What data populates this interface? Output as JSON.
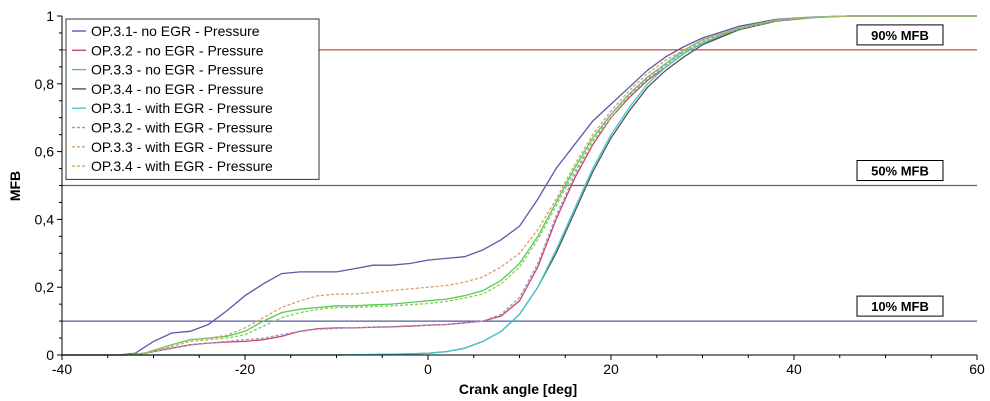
{
  "chart_data": {
    "type": "line",
    "title": "",
    "xlabel": "Crank angle [deg]",
    "ylabel": "MFB",
    "xlim": [
      -40,
      60
    ],
    "ylim": [
      0,
      1
    ],
    "xticks": [
      -40,
      -20,
      0,
      20,
      40,
      60
    ],
    "xtick_labels": [
      "-40",
      "-20",
      "0",
      "20",
      "40",
      "60"
    ],
    "yticks": [
      0,
      0.2,
      0.4,
      0.6,
      0.8,
      1
    ],
    "ytick_labels": [
      "0",
      "0,2",
      "0,4",
      "0,6",
      "0,8",
      "1"
    ],
    "grid": false,
    "legend_position": "top-left",
    "reference_lines": [
      {
        "label": "90% MFB",
        "y": 0.9,
        "color": "#c0504d"
      },
      {
        "label": "50% MFB",
        "y": 0.5,
        "color": "#8a4a8a"
      },
      {
        "label": "10% MFB",
        "y": 0.1,
        "color": "#5a5aa0"
      }
    ],
    "series": [
      {
        "name": "OP.3.1- no EGR - Pressure",
        "color": "#5a5aa8",
        "dash": "solid",
        "points": [
          [
            -40,
            0
          ],
          [
            -34,
            0
          ],
          [
            -32,
            0.005
          ],
          [
            -30,
            0.04
          ],
          [
            -28,
            0.065
          ],
          [
            -26,
            0.07
          ],
          [
            -24,
            0.09
          ],
          [
            -22,
            0.13
          ],
          [
            -20,
            0.175
          ],
          [
            -18,
            0.21
          ],
          [
            -16,
            0.24
          ],
          [
            -14,
            0.245
          ],
          [
            -12,
            0.245
          ],
          [
            -10,
            0.245
          ],
          [
            -8,
            0.255
          ],
          [
            -6,
            0.265
          ],
          [
            -4,
            0.265
          ],
          [
            -2,
            0.27
          ],
          [
            0,
            0.28
          ],
          [
            2,
            0.285
          ],
          [
            4,
            0.29
          ],
          [
            6,
            0.31
          ],
          [
            8,
            0.34
          ],
          [
            10,
            0.38
          ],
          [
            12,
            0.46
          ],
          [
            14,
            0.55
          ],
          [
            16,
            0.62
          ],
          [
            18,
            0.69
          ],
          [
            20,
            0.74
          ],
          [
            22,
            0.79
          ],
          [
            24,
            0.84
          ],
          [
            26,
            0.88
          ],
          [
            28,
            0.91
          ],
          [
            30,
            0.935
          ],
          [
            34,
            0.97
          ],
          [
            38,
            0.99
          ],
          [
            42,
            0.997
          ],
          [
            46,
            1
          ],
          [
            60,
            1
          ]
        ]
      },
      {
        "name": "OP.3.2 - no EGR - Pressure",
        "color": "#cc4466",
        "dash": "solid",
        "points": [
          [
            -40,
            0
          ],
          [
            -33,
            0
          ],
          [
            -31,
            0.005
          ],
          [
            -28,
            0.02
          ],
          [
            -26,
            0.03
          ],
          [
            -24,
            0.035
          ],
          [
            -22,
            0.038
          ],
          [
            -20,
            0.04
          ],
          [
            -18,
            0.045
          ],
          [
            -16,
            0.055
          ],
          [
            -14,
            0.07
          ],
          [
            -12,
            0.078
          ],
          [
            -10,
            0.08
          ],
          [
            -8,
            0.08
          ],
          [
            -6,
            0.082
          ],
          [
            -4,
            0.083
          ],
          [
            -2,
            0.085
          ],
          [
            0,
            0.088
          ],
          [
            2,
            0.09
          ],
          [
            4,
            0.095
          ],
          [
            6,
            0.1
          ],
          [
            8,
            0.115
          ],
          [
            10,
            0.16
          ],
          [
            12,
            0.26
          ],
          [
            14,
            0.4
          ],
          [
            16,
            0.52
          ],
          [
            18,
            0.62
          ],
          [
            20,
            0.7
          ],
          [
            22,
            0.76
          ],
          [
            24,
            0.81
          ],
          [
            26,
            0.85
          ],
          [
            28,
            0.89
          ],
          [
            30,
            0.92
          ],
          [
            34,
            0.96
          ],
          [
            38,
            0.985
          ],
          [
            42,
            0.995
          ],
          [
            46,
            1
          ],
          [
            60,
            1
          ]
        ]
      },
      {
        "name": "OP.3.3 - no EGR - Pressure",
        "color": "#55cc55",
        "dash": "solid",
        "points": [
          [
            -40,
            0
          ],
          [
            -33,
            0
          ],
          [
            -31,
            0.005
          ],
          [
            -28,
            0.03
          ],
          [
            -26,
            0.045
          ],
          [
            -24,
            0.05
          ],
          [
            -22,
            0.055
          ],
          [
            -20,
            0.07
          ],
          [
            -18,
            0.1
          ],
          [
            -16,
            0.125
          ],
          [
            -14,
            0.135
          ],
          [
            -12,
            0.14
          ],
          [
            -10,
            0.145
          ],
          [
            -8,
            0.145
          ],
          [
            -6,
            0.148
          ],
          [
            -4,
            0.15
          ],
          [
            -2,
            0.155
          ],
          [
            0,
            0.16
          ],
          [
            2,
            0.165
          ],
          [
            4,
            0.175
          ],
          [
            6,
            0.19
          ],
          [
            8,
            0.22
          ],
          [
            10,
            0.27
          ],
          [
            12,
            0.35
          ],
          [
            14,
            0.45
          ],
          [
            16,
            0.55
          ],
          [
            18,
            0.64
          ],
          [
            20,
            0.71
          ],
          [
            22,
            0.77
          ],
          [
            24,
            0.82
          ],
          [
            26,
            0.86
          ],
          [
            28,
            0.9
          ],
          [
            30,
            0.93
          ],
          [
            34,
            0.965
          ],
          [
            38,
            0.988
          ],
          [
            42,
            0.996
          ],
          [
            46,
            1
          ],
          [
            60,
            1
          ]
        ]
      },
      {
        "name": "OP.3.4 - no EGR - Pressure",
        "color": "#555555",
        "dash": "solid",
        "points": [
          [
            -40,
            0
          ],
          [
            -20,
            0
          ],
          [
            -10,
            0
          ],
          [
            -4,
            0.002
          ],
          [
            0,
            0.005
          ],
          [
            2,
            0.01
          ],
          [
            4,
            0.02
          ],
          [
            6,
            0.04
          ],
          [
            8,
            0.07
          ],
          [
            10,
            0.12
          ],
          [
            12,
            0.2
          ],
          [
            14,
            0.3
          ],
          [
            16,
            0.42
          ],
          [
            18,
            0.54
          ],
          [
            20,
            0.64
          ],
          [
            22,
            0.72
          ],
          [
            24,
            0.79
          ],
          [
            26,
            0.84
          ],
          [
            28,
            0.88
          ],
          [
            30,
            0.915
          ],
          [
            34,
            0.96
          ],
          [
            38,
            0.985
          ],
          [
            42,
            0.996
          ],
          [
            46,
            1
          ],
          [
            60,
            1
          ]
        ]
      },
      {
        "name": "OP.3.1 - with EGR - Pressure",
        "color": "#44cccc",
        "dash": "solid",
        "points": [
          [
            -40,
            0
          ],
          [
            -20,
            0
          ],
          [
            -10,
            0
          ],
          [
            -4,
            0.002
          ],
          [
            0,
            0.005
          ],
          [
            2,
            0.01
          ],
          [
            4,
            0.02
          ],
          [
            6,
            0.04
          ],
          [
            8,
            0.07
          ],
          [
            10,
            0.12
          ],
          [
            12,
            0.2
          ],
          [
            14,
            0.31
          ],
          [
            16,
            0.43
          ],
          [
            18,
            0.55
          ],
          [
            20,
            0.65
          ],
          [
            22,
            0.73
          ],
          [
            24,
            0.8
          ],
          [
            26,
            0.85
          ],
          [
            28,
            0.89
          ],
          [
            30,
            0.92
          ],
          [
            34,
            0.965
          ],
          [
            38,
            0.988
          ],
          [
            42,
            0.997
          ],
          [
            46,
            1
          ],
          [
            60,
            1
          ]
        ]
      },
      {
        "name": "OP.3.2 - with EGR - Pressure",
        "color": "#9999cc",
        "dash": "dashed",
        "points": [
          [
            -40,
            0
          ],
          [
            -33,
            0
          ],
          [
            -31,
            0.005
          ],
          [
            -28,
            0.02
          ],
          [
            -26,
            0.03
          ],
          [
            -24,
            0.035
          ],
          [
            -22,
            0.04
          ],
          [
            -20,
            0.045
          ],
          [
            -18,
            0.05
          ],
          [
            -16,
            0.06
          ],
          [
            -14,
            0.07
          ],
          [
            -12,
            0.076
          ],
          [
            -10,
            0.078
          ],
          [
            -8,
            0.08
          ],
          [
            -6,
            0.082
          ],
          [
            -4,
            0.084
          ],
          [
            -2,
            0.086
          ],
          [
            0,
            0.088
          ],
          [
            2,
            0.09
          ],
          [
            4,
            0.095
          ],
          [
            6,
            0.1
          ],
          [
            8,
            0.12
          ],
          [
            10,
            0.17
          ],
          [
            12,
            0.27
          ],
          [
            14,
            0.41
          ],
          [
            16,
            0.53
          ],
          [
            18,
            0.63
          ],
          [
            20,
            0.71
          ],
          [
            22,
            0.77
          ],
          [
            24,
            0.82
          ],
          [
            26,
            0.86
          ],
          [
            28,
            0.895
          ],
          [
            30,
            0.925
          ],
          [
            34,
            0.962
          ],
          [
            38,
            0.986
          ],
          [
            42,
            0.996
          ],
          [
            46,
            1
          ],
          [
            60,
            1
          ]
        ]
      },
      {
        "name": "OP.3.3 - with EGR - Pressure",
        "color": "#d4a070",
        "dash": "dashed",
        "points": [
          [
            -40,
            0
          ],
          [
            -33,
            0
          ],
          [
            -31,
            0.005
          ],
          [
            -28,
            0.03
          ],
          [
            -26,
            0.045
          ],
          [
            -24,
            0.05
          ],
          [
            -22,
            0.058
          ],
          [
            -20,
            0.08
          ],
          [
            -18,
            0.11
          ],
          [
            -16,
            0.14
          ],
          [
            -14,
            0.16
          ],
          [
            -12,
            0.175
          ],
          [
            -10,
            0.18
          ],
          [
            -8,
            0.18
          ],
          [
            -6,
            0.185
          ],
          [
            -4,
            0.19
          ],
          [
            -2,
            0.195
          ],
          [
            0,
            0.2
          ],
          [
            2,
            0.205
          ],
          [
            4,
            0.215
          ],
          [
            6,
            0.23
          ],
          [
            8,
            0.26
          ],
          [
            10,
            0.3
          ],
          [
            12,
            0.37
          ],
          [
            14,
            0.46
          ],
          [
            16,
            0.56
          ],
          [
            18,
            0.65
          ],
          [
            20,
            0.72
          ],
          [
            22,
            0.78
          ],
          [
            24,
            0.83
          ],
          [
            26,
            0.87
          ],
          [
            28,
            0.9
          ],
          [
            30,
            0.93
          ],
          [
            34,
            0.965
          ],
          [
            38,
            0.988
          ],
          [
            42,
            0.996
          ],
          [
            46,
            1
          ],
          [
            60,
            1
          ]
        ]
      },
      {
        "name": "OP.3.4 - with EGR - Pressure",
        "color": "#88cc55",
        "dash": "dashed",
        "points": [
          [
            -40,
            0
          ],
          [
            -33,
            0
          ],
          [
            -31,
            0.005
          ],
          [
            -28,
            0.025
          ],
          [
            -26,
            0.04
          ],
          [
            -24,
            0.045
          ],
          [
            -22,
            0.05
          ],
          [
            -20,
            0.06
          ],
          [
            -18,
            0.085
          ],
          [
            -16,
            0.11
          ],
          [
            -14,
            0.125
          ],
          [
            -12,
            0.135
          ],
          [
            -10,
            0.14
          ],
          [
            -8,
            0.14
          ],
          [
            -6,
            0.143
          ],
          [
            -4,
            0.145
          ],
          [
            -2,
            0.148
          ],
          [
            0,
            0.152
          ],
          [
            2,
            0.158
          ],
          [
            4,
            0.168
          ],
          [
            6,
            0.18
          ],
          [
            8,
            0.21
          ],
          [
            10,
            0.26
          ],
          [
            12,
            0.34
          ],
          [
            14,
            0.44
          ],
          [
            16,
            0.54
          ],
          [
            18,
            0.63
          ],
          [
            20,
            0.7
          ],
          [
            22,
            0.765
          ],
          [
            24,
            0.815
          ],
          [
            26,
            0.855
          ],
          [
            28,
            0.895
          ],
          [
            30,
            0.925
          ],
          [
            34,
            0.962
          ],
          [
            38,
            0.986
          ],
          [
            42,
            0.996
          ],
          [
            46,
            1
          ],
          [
            60,
            1
          ]
        ]
      }
    ]
  }
}
